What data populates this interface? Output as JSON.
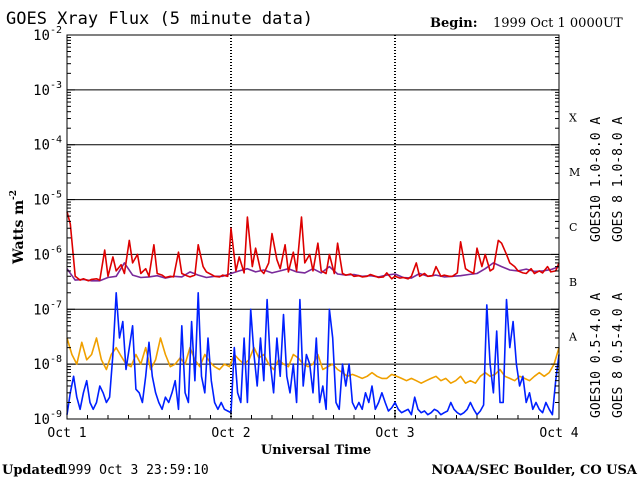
{
  "title": "GOES Xray Flux (5 minute data)",
  "begin_label": "Begin:",
  "begin_value": "1999 Oct 1 0000UT",
  "footer_left_label": "Updated",
  "footer_left_value": "1999 Oct  3 23:59:10",
  "footer_right": "NOAA/SEC Boulder, CO USA",
  "colors": {
    "goes10_long": "#7a2a9a",
    "goes8_long": "#dd0000",
    "goes10_short": "#f0a000",
    "goes8_short": "#0020ff",
    "frame": "#000000"
  },
  "chart_data": {
    "type": "line",
    "title": "GOES Xray Flux (5 minute data)",
    "xlabel": "Universal Time",
    "ylabel": "Watts m",
    "ylabel_exp": "-2",
    "y_scale": "log",
    "ylim": [
      1e-09,
      0.01
    ],
    "xlim": [
      0,
      3
    ],
    "x_ticks": [
      {
        "x": 0,
        "label": "Oct 1"
      },
      {
        "x": 1,
        "label": "Oct 2"
      },
      {
        "x": 2,
        "label": "Oct 3"
      },
      {
        "x": 3,
        "label": "Oct 4"
      }
    ],
    "y_ticks": [
      {
        "exp": -2,
        "base": "10",
        "sup": "-2"
      },
      {
        "exp": -3,
        "base": "10",
        "sup": "-3"
      },
      {
        "exp": -4,
        "base": "10",
        "sup": "-4"
      },
      {
        "exp": -5,
        "base": "10",
        "sup": "-5"
      },
      {
        "exp": -6,
        "base": "10",
        "sup": "-6"
      },
      {
        "exp": -7,
        "base": "10",
        "sup": "-7"
      },
      {
        "exp": -8,
        "base": "10",
        "sup": "-8"
      },
      {
        "exp": -9,
        "base": "10",
        "sup": "-9"
      }
    ],
    "flare_classes": [
      {
        "label": "X",
        "exp": -3.5
      },
      {
        "label": "M",
        "exp": -4.5
      },
      {
        "label": "C",
        "exp": -5.5
      },
      {
        "label": "B",
        "exp": -6.5
      },
      {
        "label": "A",
        "exp": -7.5
      }
    ],
    "grid": true,
    "legend": "right",
    "series": [
      {
        "name": "GOES10 1.0-8.0 A",
        "color_key": "goes10_long",
        "x": [
          0.0,
          0.05,
          0.1,
          0.15,
          0.2,
          0.25,
          0.3,
          0.35,
          0.4,
          0.45,
          0.5,
          0.55,
          0.6,
          0.65,
          0.7,
          0.75,
          0.8,
          0.85,
          0.9,
          0.95,
          1.0,
          1.05,
          1.1,
          1.15,
          1.2,
          1.25,
          1.3,
          1.35,
          1.4,
          1.45,
          1.5,
          1.55,
          1.6,
          1.65,
          1.7,
          1.75,
          1.8,
          1.85,
          1.9,
          1.95,
          2.0,
          2.05,
          2.1,
          2.15,
          2.2,
          2.25,
          2.3,
          2.35,
          2.4,
          2.45,
          2.5,
          2.55,
          2.6,
          2.65,
          2.7,
          2.75,
          2.8,
          2.85,
          2.9,
          2.95,
          3.0
        ],
        "y": [
          5.5e-07,
          3.4e-07,
          3.5e-07,
          3.3e-07,
          3.3e-07,
          3.8e-07,
          4e-07,
          7e-07,
          4.2e-07,
          3.8e-07,
          3.9e-07,
          4.1e-07,
          3.7e-07,
          4e-07,
          3.9e-07,
          4.8e-07,
          4.2e-07,
          3.8e-07,
          4e-07,
          4e-07,
          4.5e-07,
          5e-07,
          5.5e-07,
          4.8e-07,
          5.2e-07,
          4.6e-07,
          5e-07,
          5.5e-07,
          4.8e-07,
          4.6e-07,
          5.5e-07,
          4.6e-07,
          6e-07,
          4.4e-07,
          4.2e-07,
          4.3e-07,
          4e-07,
          4.1e-07,
          3.9e-07,
          4.2e-07,
          4.4e-07,
          3.8e-07,
          3.7e-07,
          4.5e-07,
          4e-07,
          4.2e-07,
          3.9e-07,
          4e-07,
          4.1e-07,
          4.3e-07,
          4.5e-07,
          5.5e-07,
          7e-07,
          6e-07,
          5.2e-07,
          5e-07,
          5.4e-07,
          4.9e-07,
          5e-07,
          5.3e-07,
          6e-07
        ]
      },
      {
        "name": "GOES 8 1.0-8.0 A",
        "color_key": "goes8_long",
        "x": [
          0.0,
          0.02,
          0.05,
          0.08,
          0.1,
          0.13,
          0.15,
          0.18,
          0.2,
          0.23,
          0.25,
          0.28,
          0.3,
          0.33,
          0.35,
          0.38,
          0.4,
          0.43,
          0.45,
          0.48,
          0.5,
          0.53,
          0.55,
          0.58,
          0.6,
          0.63,
          0.65,
          0.68,
          0.7,
          0.73,
          0.75,
          0.78,
          0.8,
          0.83,
          0.85,
          0.88,
          0.9,
          0.93,
          0.95,
          0.98,
          1.0,
          1.03,
          1.05,
          1.08,
          1.1,
          1.13,
          1.15,
          1.18,
          1.2,
          1.23,
          1.25,
          1.28,
          1.3,
          1.33,
          1.35,
          1.38,
          1.4,
          1.43,
          1.45,
          1.48,
          1.5,
          1.53,
          1.55,
          1.58,
          1.6,
          1.63,
          1.65,
          1.68,
          1.7,
          1.73,
          1.75,
          1.78,
          1.8,
          1.83,
          1.85,
          1.88,
          1.9,
          1.93,
          1.95,
          1.98,
          2.0,
          2.03,
          2.05,
          2.08,
          2.1,
          2.13,
          2.15,
          2.18,
          2.2,
          2.23,
          2.25,
          2.28,
          2.3,
          2.33,
          2.35,
          2.38,
          2.4,
          2.43,
          2.45,
          2.48,
          2.5,
          2.53,
          2.55,
          2.58,
          2.6,
          2.63,
          2.65,
          2.68,
          2.7,
          2.73,
          2.75,
          2.78,
          2.8,
          2.83,
          2.85,
          2.88,
          2.9,
          2.93,
          2.95,
          2.98,
          3.0
        ],
        "y": [
          6e-06,
          3.6e-06,
          4e-07,
          3.4e-07,
          3.6e-07,
          3.3e-07,
          3.5e-07,
          3.6e-07,
          3.4e-07,
          1.2e-06,
          4e-07,
          9e-07,
          5e-07,
          6.5e-07,
          4.5e-07,
          1.8e-06,
          7e-07,
          1e-06,
          4.5e-07,
          5.5e-07,
          4e-07,
          1.5e-06,
          4.5e-07,
          4.2e-07,
          3.8e-07,
          4e-07,
          3.9e-07,
          1.1e-06,
          4.5e-07,
          4.1e-07,
          3.9e-07,
          4.2e-07,
          1.5e-06,
          6e-07,
          4.8e-07,
          4.3e-07,
          4e-07,
          3.9e-07,
          4.2e-07,
          4e-07,
          3e-06,
          5e-07,
          9e-07,
          4.6e-07,
          4.8e-06,
          6e-07,
          1.3e-06,
          5.2e-07,
          4.5e-07,
          7e-07,
          2.4e-06,
          8e-07,
          5.5e-07,
          1.5e-06,
          4.8e-07,
          1.1e-06,
          5e-07,
          4.8e-06,
          7e-07,
          1e-06,
          5e-07,
          1.6e-06,
          5e-07,
          4.5e-07,
          1e-06,
          4.5e-07,
          1.6e-06,
          4.5e-07,
          4.2e-07,
          4.4e-07,
          4e-07,
          4.1e-07,
          3.9e-07,
          4e-07,
          4.3e-07,
          4e-07,
          3.8e-07,
          3.9e-07,
          4.6e-07,
          3.6e-07,
          4e-07,
          3.7e-07,
          3.8e-07,
          3.6e-07,
          4e-07,
          7e-07,
          4e-07,
          4.5e-07,
          4e-07,
          4.1e-07,
          6e-07,
          4e-07,
          4.2e-07,
          4e-07,
          4e-07,
          4.6e-07,
          1.7e-06,
          5.5e-07,
          5e-07,
          4.5e-07,
          1.3e-06,
          6e-07,
          1e-06,
          5e-07,
          5.5e-07,
          1.8e-06,
          1.6e-06,
          1e-06,
          7e-07,
          6e-07,
          5e-07,
          4.6e-07,
          4.5e-07,
          5.5e-07,
          4.5e-07,
          5e-07,
          4.6e-07,
          6e-07,
          4.8e-07,
          5e-07,
          7e-07
        ]
      },
      {
        "name": "GOES10 0.5-4.0 A",
        "color_key": "goes10_short",
        "x": [
          0.0,
          0.03,
          0.06,
          0.09,
          0.12,
          0.15,
          0.18,
          0.21,
          0.24,
          0.27,
          0.3,
          0.33,
          0.36,
          0.39,
          0.42,
          0.45,
          0.48,
          0.51,
          0.54,
          0.57,
          0.6,
          0.63,
          0.66,
          0.69,
          0.72,
          0.75,
          0.78,
          0.81,
          0.84,
          0.87,
          0.9,
          0.93,
          0.96,
          0.99,
          1.02,
          1.05,
          1.08,
          1.11,
          1.14,
          1.17,
          1.2,
          1.23,
          1.26,
          1.29,
          1.32,
          1.35,
          1.38,
          1.41,
          1.44,
          1.47,
          1.5,
          1.53,
          1.56,
          1.59,
          1.62,
          1.65,
          1.68,
          1.71,
          1.74,
          1.77,
          1.8,
          1.83,
          1.86,
          1.89,
          1.92,
          1.95,
          1.98,
          2.01,
          2.04,
          2.07,
          2.1,
          2.13,
          2.16,
          2.19,
          2.22,
          2.25,
          2.28,
          2.31,
          2.34,
          2.37,
          2.4,
          2.43,
          2.46,
          2.49,
          2.52,
          2.55,
          2.58,
          2.61,
          2.64,
          2.67,
          2.7,
          2.73,
          2.76,
          2.79,
          2.82,
          2.85,
          2.88,
          2.91,
          2.94,
          2.97,
          3.0
        ],
        "y": [
          3e-08,
          1.5e-08,
          1e-08,
          2.5e-08,
          1.2e-08,
          1.5e-08,
          3e-08,
          1.2e-08,
          8e-09,
          1.5e-08,
          2e-08,
          1.4e-08,
          1e-08,
          9e-09,
          1.5e-08,
          1e-08,
          2e-08,
          8e-09,
          1.2e-08,
          3e-08,
          1.5e-08,
          9e-09,
          1e-08,
          1.3e-08,
          1e-08,
          2e-08,
          1.2e-08,
          9e-09,
          1.5e-08,
          1.1e-08,
          9e-09,
          8e-09,
          1e-08,
          9e-09,
          1.5e-08,
          1.2e-08,
          1e-08,
          1.2e-08,
          2e-08,
          1.3e-08,
          1.5e-08,
          1e-08,
          8e-09,
          1.2e-08,
          1e-08,
          9e-09,
          1.5e-08,
          1.3e-08,
          1e-08,
          9e-09,
          1e-08,
          1.5e-08,
          8e-09,
          9e-09,
          1e-08,
          8e-09,
          7e-09,
          6e-09,
          6.5e-09,
          6e-09,
          5.5e-09,
          6e-09,
          7e-09,
          6e-09,
          5.5e-09,
          5.5e-09,
          6.5e-09,
          6e-09,
          5.5e-09,
          5e-09,
          5.5e-09,
          5e-09,
          4.5e-09,
          5e-09,
          5.5e-09,
          6e-09,
          5e-09,
          5.5e-09,
          4.5e-09,
          5e-09,
          6e-09,
          4.5e-09,
          5e-09,
          4.5e-09,
          6e-09,
          7e-09,
          6e-09,
          6.5e-09,
          8e-09,
          6e-09,
          5.5e-09,
          5e-09,
          6e-09,
          5.5e-09,
          5e-09,
          6e-09,
          7e-09,
          6e-09,
          7e-09,
          1e-08,
          2e-08
        ]
      },
      {
        "name": "GOES 8 0.5-4.0 A",
        "color_key": "goes8_short",
        "x": [
          0.0,
          0.02,
          0.04,
          0.06,
          0.08,
          0.1,
          0.12,
          0.14,
          0.16,
          0.18,
          0.2,
          0.22,
          0.24,
          0.26,
          0.28,
          0.3,
          0.32,
          0.34,
          0.36,
          0.38,
          0.4,
          0.42,
          0.44,
          0.46,
          0.48,
          0.5,
          0.52,
          0.54,
          0.56,
          0.58,
          0.6,
          0.62,
          0.64,
          0.66,
          0.68,
          0.7,
          0.72,
          0.74,
          0.76,
          0.78,
          0.8,
          0.82,
          0.84,
          0.86,
          0.88,
          0.9,
          0.92,
          0.94,
          0.96,
          0.98,
          1.0,
          1.02,
          1.04,
          1.06,
          1.08,
          1.1,
          1.12,
          1.14,
          1.16,
          1.18,
          1.2,
          1.22,
          1.24,
          1.26,
          1.28,
          1.3,
          1.32,
          1.34,
          1.36,
          1.38,
          1.4,
          1.42,
          1.44,
          1.46,
          1.48,
          1.5,
          1.52,
          1.54,
          1.56,
          1.58,
          1.6,
          1.62,
          1.64,
          1.66,
          1.68,
          1.7,
          1.72,
          1.74,
          1.76,
          1.78,
          1.8,
          1.82,
          1.84,
          1.86,
          1.88,
          1.9,
          1.92,
          1.94,
          1.96,
          1.98,
          2.0,
          2.02,
          2.04,
          2.06,
          2.08,
          2.1,
          2.12,
          2.14,
          2.16,
          2.18,
          2.2,
          2.22,
          2.24,
          2.26,
          2.28,
          2.3,
          2.32,
          2.34,
          2.36,
          2.38,
          2.4,
          2.42,
          2.44,
          2.46,
          2.48,
          2.5,
          2.52,
          2.54,
          2.56,
          2.58,
          2.6,
          2.62,
          2.64,
          2.66,
          2.68,
          2.7,
          2.72,
          2.74,
          2.76,
          2.78,
          2.8,
          2.82,
          2.84,
          2.86,
          2.88,
          2.9,
          2.92,
          2.94,
          2.96,
          2.98,
          3.0
        ],
        "y": [
          1.2e-09,
          3e-09,
          6e-09,
          2.5e-09,
          1.5e-09,
          3e-09,
          5e-09,
          2e-09,
          1.5e-09,
          2e-09,
          4e-09,
          3e-09,
          2e-09,
          2.5e-09,
          1.5e-08,
          2e-07,
          3e-08,
          6e-08,
          8e-09,
          2e-08,
          5e-08,
          3.5e-09,
          3e-09,
          2e-09,
          6e-09,
          2.5e-08,
          6e-09,
          3e-09,
          2e-09,
          1.5e-09,
          2.5e-09,
          2e-09,
          3e-09,
          5e-09,
          1.5e-09,
          5e-08,
          3e-09,
          2e-09,
          6e-08,
          5e-09,
          2e-07,
          6e-09,
          3e-09,
          3e-08,
          5e-09,
          2e-09,
          1.5e-09,
          2e-09,
          1.5e-09,
          1.4e-09,
          1.3e-09,
          2e-08,
          3e-09,
          2e-09,
          3e-08,
          2e-09,
          1e-07,
          1.5e-08,
          4e-09,
          3e-08,
          5e-09,
          1.5e-07,
          1e-08,
          3e-09,
          3e-08,
          6e-09,
          8e-08,
          6e-09,
          3e-09,
          1e-08,
          2e-09,
          1.5e-07,
          4e-09,
          1.5e-08,
          1e-08,
          3e-09,
          3e-08,
          2e-09,
          4e-09,
          1.5e-09,
          1e-07,
          3e-08,
          2e-09,
          1.5e-09,
          1e-08,
          4e-09,
          1e-08,
          2e-09,
          1.5e-09,
          2e-09,
          1.5e-09,
          3e-09,
          2e-09,
          4e-09,
          1.5e-09,
          2e-09,
          3e-09,
          2e-09,
          1.4e-09,
          1.6e-09,
          2e-09,
          1.5e-09,
          1.3e-09,
          1.4e-09,
          1.5e-09,
          1.2e-09,
          2.5e-09,
          1.5e-09,
          1.3e-09,
          1.4e-09,
          1.2e-09,
          1.3e-09,
          1.5e-09,
          1.4e-09,
          1.2e-09,
          1.3e-09,
          1.4e-09,
          2e-09,
          1.5e-09,
          1.3e-09,
          1.2e-09,
          1.3e-09,
          1.5e-09,
          2e-09,
          1.5e-09,
          1.2e-09,
          1.4e-09,
          1.8e-09,
          1.2e-07,
          1e-08,
          3e-09,
          4e-08,
          2e-09,
          2e-09,
          1.5e-07,
          2e-08,
          6e-08,
          1e-08,
          4e-09,
          6e-09,
          2e-09,
          3e-09,
          1.5e-09,
          2e-09,
          1.5e-09,
          1.3e-09,
          2e-09,
          1.5e-09,
          1.2e-09,
          5e-09,
          1.5e-08
        ]
      }
    ]
  }
}
